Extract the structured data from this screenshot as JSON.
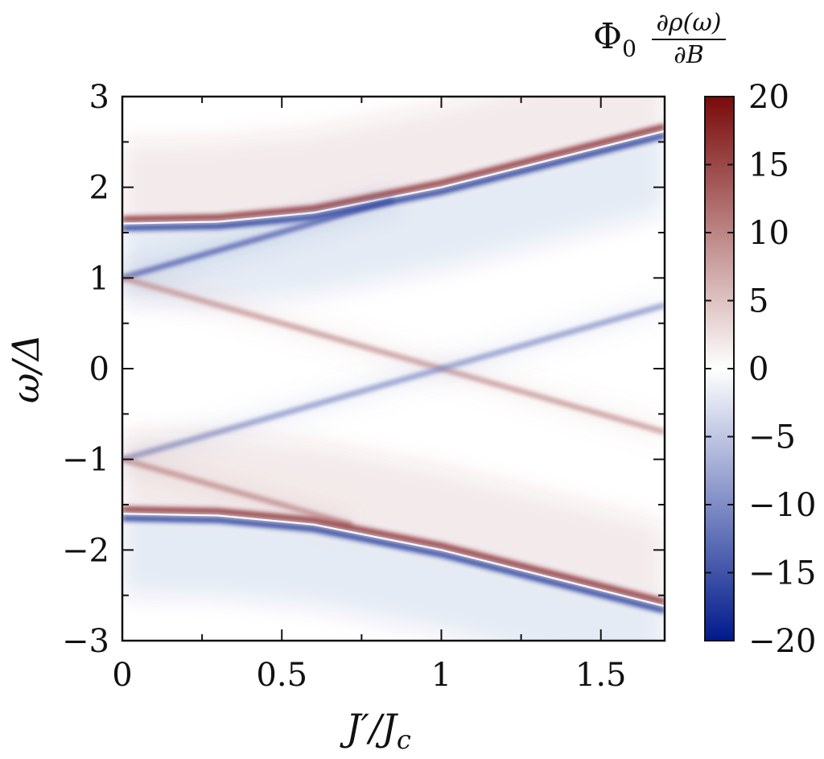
{
  "chart_data": {
    "type": "heatmap",
    "title": "",
    "xlabel": "J′/J",
    "xlabel_sub": "c",
    "ylabel": "ω/Δ",
    "xlim": [
      0,
      1.7
    ],
    "ylim": [
      -3,
      3
    ],
    "x_ticks": [
      0,
      0.5,
      1,
      1.5
    ],
    "x_tick_labels": [
      "0",
      "0.5",
      "1",
      "1.5"
    ],
    "x_minor_ticks": [
      0.25,
      0.75,
      1.25
    ],
    "y_ticks": [
      -3,
      -2,
      -1,
      0,
      1,
      2,
      3
    ],
    "y_tick_labels": [
      "−3",
      "−2",
      "−1",
      "0",
      "1",
      "2",
      "3"
    ],
    "y_minor_ticks": [
      -2.5,
      -1.5,
      -0.5,
      0.5,
      1.5,
      2.5
    ],
    "colorbar": {
      "label_prefix": "Φ",
      "label_prefix_sub": "0",
      "label_numerator": "∂ρ(ω)",
      "label_denominator": "∂B",
      "min": -20,
      "max": 20,
      "ticks": [
        20,
        15,
        10,
        5,
        0,
        -5,
        -10,
        -15,
        -20
      ],
      "tick_labels": [
        "20",
        "15",
        "10",
        "5",
        "0",
        "−5",
        "−10",
        "−15",
        "−20"
      ],
      "colors": [
        "#001a8c",
        "#ffffff",
        "#7a0a0a"
      ]
    },
    "features": [
      {
        "name": "upper-band-edge",
        "points": [
          [
            0,
            1.6
          ],
          [
            0.3,
            1.62
          ],
          [
            0.6,
            1.72
          ],
          [
            0.8,
            1.86
          ],
          [
            1.0,
            2.0
          ],
          [
            1.7,
            2.62
          ]
        ],
        "value_above": 18,
        "value_below": -18
      },
      {
        "name": "rising-upper",
        "points": [
          [
            0,
            1.0
          ],
          [
            0.85,
            1.86
          ]
        ],
        "value": -16
      },
      {
        "name": "falling-center",
        "points": [
          [
            0,
            1.0
          ],
          [
            1.0,
            0.0
          ],
          [
            1.7,
            -0.7
          ]
        ],
        "value": 10
      },
      {
        "name": "rising-center",
        "points": [
          [
            0,
            -1.0
          ],
          [
            1.0,
            0.0
          ],
          [
            1.7,
            0.7
          ]
        ],
        "value": -11
      },
      {
        "name": "falling-lower",
        "points": [
          [
            0,
            -1.0
          ],
          [
            0.72,
            -1.72
          ]
        ],
        "value": 10
      },
      {
        "name": "lower-band-edge",
        "points": [
          [
            0,
            -1.6
          ],
          [
            0.3,
            -1.62
          ],
          [
            0.6,
            -1.72
          ],
          [
            0.8,
            -1.86
          ],
          [
            1.0,
            -2.0
          ],
          [
            1.7,
            -2.62
          ]
        ],
        "value_above": 18,
        "value_below": -18
      }
    ]
  }
}
